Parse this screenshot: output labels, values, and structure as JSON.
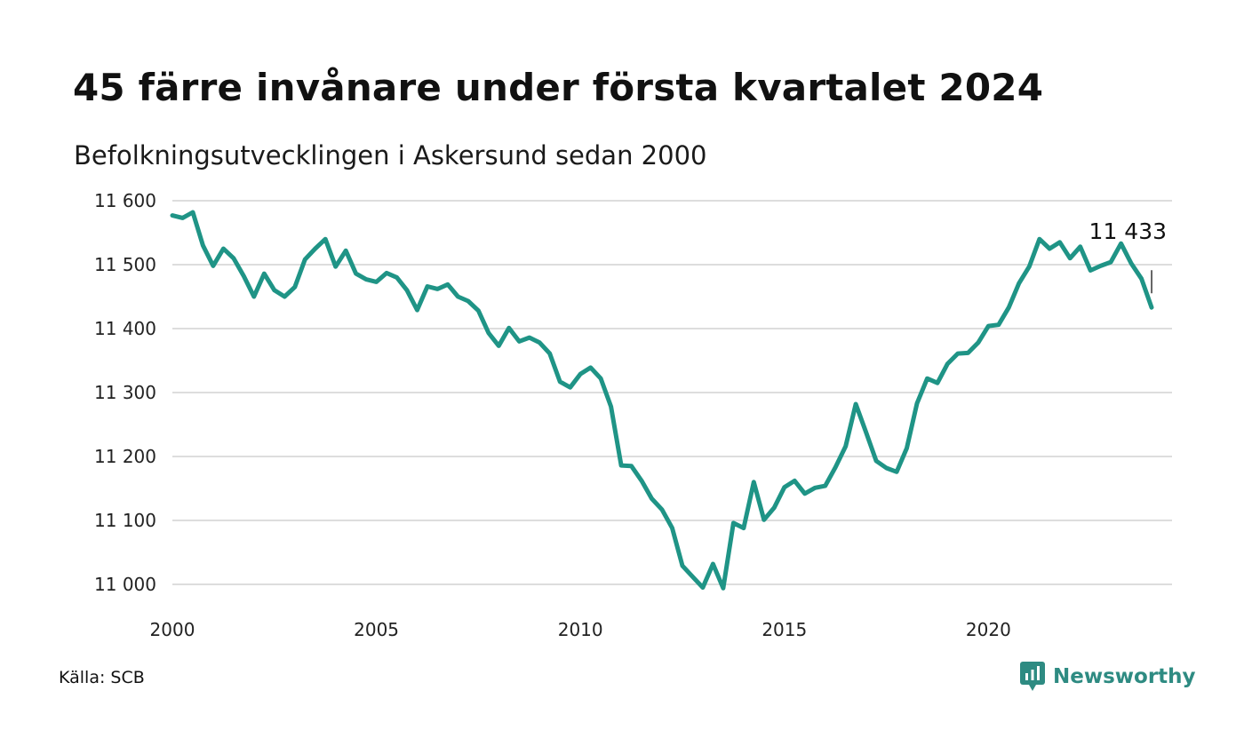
{
  "header": {
    "title": "45 färre invånare under första kvartalet 2024",
    "subtitle": "Befolkningsutvecklingen i Askersund sedan 2000"
  },
  "footer": {
    "source": "Källa: SCB",
    "brand_name": "Newsworthy",
    "brand_icon": "newsworthy-logo-icon"
  },
  "colors": {
    "line": "#1f9486",
    "grid": "#dddddd",
    "brand": "#2e8b82"
  },
  "chart_data": {
    "type": "line",
    "title": "45 färre invånare under första kvartalet 2024",
    "subtitle": "Befolkningsutvecklingen i Askersund sedan 2000",
    "xlabel": "",
    "ylabel": "",
    "xlim": [
      2000,
      2024.5
    ],
    "ylim": [
      11000,
      11600
    ],
    "xticks": [
      2000,
      2005,
      2010,
      2015,
      2020
    ],
    "xtick_labels": [
      "2000",
      "2005",
      "2010",
      "2015",
      "2020"
    ],
    "yticks": [
      11000,
      11100,
      11200,
      11300,
      11400,
      11500,
      11600
    ],
    "ytick_labels": [
      "11 000",
      "11 100",
      "11 200",
      "11 300",
      "11 400",
      "11 500",
      "11 600"
    ],
    "grid": "horizontal",
    "legend": "none",
    "annotation": {
      "text": "11 433",
      "x": 2024.0,
      "y": 11433
    },
    "series": [
      {
        "x": [
          2000.0,
          2000.25,
          2000.5,
          2000.75,
          2001.0,
          2001.25,
          2001.5,
          2001.75,
          2002.0,
          2002.25,
          2002.5,
          2002.75,
          2003.0,
          2003.25,
          2003.5,
          2003.75,
          2004.0,
          2004.25,
          2004.5,
          2004.75,
          2005.0,
          2005.25,
          2005.5,
          2005.75,
          2006.0,
          2006.25,
          2006.5,
          2006.75,
          2007.0,
          2007.25,
          2007.5,
          2007.75,
          2008.0,
          2008.25,
          2008.5,
          2008.75,
          2009.0,
          2009.25,
          2009.5,
          2009.75,
          2010.0,
          2010.25,
          2010.5,
          2010.75,
          2011.0,
          2011.25,
          2011.5,
          2011.75,
          2012.0,
          2012.25,
          2012.5,
          2012.75,
          2013.0,
          2013.25,
          2013.5,
          2013.75,
          2014.0,
          2014.25,
          2014.5,
          2014.75,
          2015.0,
          2015.25,
          2015.5,
          2015.75,
          2016.0,
          2016.25,
          2016.5,
          2016.75,
          2017.0,
          2017.25,
          2017.5,
          2017.75,
          2018.0,
          2018.25,
          2018.5,
          2018.75,
          2019.0,
          2019.25,
          2019.5,
          2019.75,
          2020.0,
          2020.25,
          2020.5,
          2020.75,
          2021.0,
          2021.25,
          2021.5,
          2021.75,
          2022.0,
          2022.25,
          2022.5,
          2022.75,
          2023.0,
          2023.25,
          2023.5,
          2023.75,
          2024.0
        ],
        "values": [
          11577,
          11573,
          11582,
          11530,
          11498,
          11525,
          11510,
          11482,
          11450,
          11486,
          11460,
          11450,
          11465,
          11508,
          11525,
          11540,
          11497,
          11522,
          11486,
          11477,
          11473,
          11487,
          11480,
          11460,
          11429,
          11466,
          11462,
          11469,
          11450,
          11443,
          11428,
          11393,
          11373,
          11401,
          11380,
          11386,
          11378,
          11361,
          11317,
          11308,
          11329,
          11339,
          11322,
          11278,
          11186,
          11185,
          11162,
          11134,
          11117,
          11088,
          11029,
          11012,
          10995,
          11032,
          10994,
          11096,
          11088,
          11160,
          11101,
          11120,
          11152,
          11162,
          11142,
          11151,
          11154,
          11183,
          11216,
          11282,
          11238,
          11193,
          11182,
          11176,
          11213,
          11283,
          11322,
          11315,
          11345,
          11361,
          11362,
          11378,
          11404,
          11406,
          11433,
          11471,
          11497,
          11540,
          11525,
          11535,
          11510,
          11528,
          11491,
          11498,
          11504,
          11533,
          11502,
          11478,
          11433
        ]
      }
    ]
  }
}
